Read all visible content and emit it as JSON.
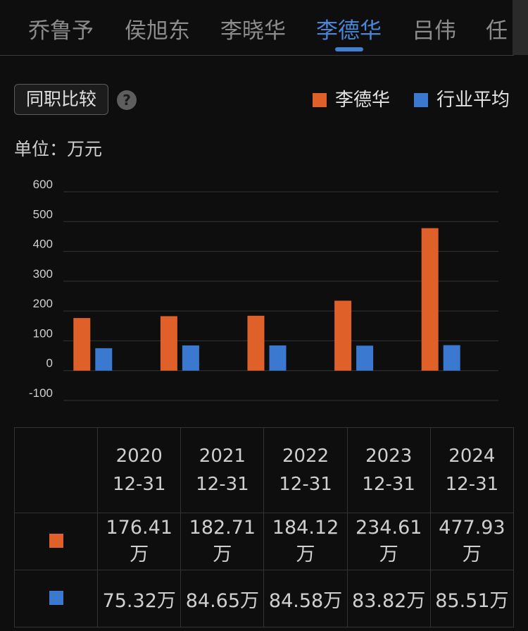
{
  "tabs": [
    {
      "label": "乔鲁予",
      "active": false
    },
    {
      "label": "侯旭东",
      "active": false
    },
    {
      "label": "李晓华",
      "active": false
    },
    {
      "label": "李德华",
      "active": true
    },
    {
      "label": "吕伟",
      "active": false
    },
    {
      "label": "任",
      "active": false
    }
  ],
  "controls": {
    "compare_label": "同职比较",
    "help_icon": "question-circle-icon",
    "help_glyph": "?"
  },
  "legend": [
    {
      "label": "李德华",
      "color": "#e0602a"
    },
    {
      "label": "行业平均",
      "color": "#3b78cf"
    }
  ],
  "unit_label": "单位：万元",
  "chart_data": {
    "type": "bar",
    "categories": [
      "2020-12-31",
      "2021-12-31",
      "2022-12-31",
      "2023-12-31",
      "2024-12-31"
    ],
    "series": [
      {
        "name": "李德华",
        "color": "#e0602a",
        "values": [
          176.41,
          182.71,
          184.12,
          234.61,
          477.93
        ]
      },
      {
        "name": "行业平均",
        "color": "#3b78cf",
        "values": [
          75.32,
          84.65,
          84.58,
          83.82,
          85.51
        ]
      }
    ],
    "ylim": [
      -100,
      600
    ],
    "yticks": [
      "600",
      "500",
      "400",
      "300",
      "200",
      "100",
      "0",
      "-100"
    ],
    "grid": true,
    "legend_position": "top-right"
  },
  "table": {
    "headers": [
      {
        "year": "2020",
        "date": "12-31"
      },
      {
        "year": "2021",
        "date": "12-31"
      },
      {
        "year": "2022",
        "date": "12-31"
      },
      {
        "year": "2023",
        "date": "12-31"
      },
      {
        "year": "2024",
        "date": "12-31"
      }
    ],
    "rows": [
      {
        "color": "#e0602a",
        "cells": [
          "176.41万",
          "182.71万",
          "184.12万",
          "234.61万",
          "477.93万"
        ]
      },
      {
        "color": "#3b78cf",
        "cells": [
          "75.32万",
          "84.65万",
          "84.58万",
          "83.82万",
          "85.51万"
        ]
      }
    ]
  }
}
